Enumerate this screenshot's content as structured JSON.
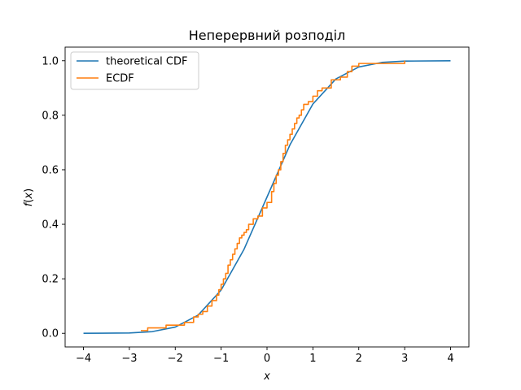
{
  "chart_data": {
    "type": "line",
    "title": "Неперервний розподіл",
    "xlabel": "x",
    "ylabel": "f(x)",
    "xlim": [
      -4.4,
      4.4
    ],
    "ylim": [
      -0.05,
      1.05
    ],
    "xticks": [
      -4,
      -3,
      -2,
      -1,
      0,
      1,
      2,
      3,
      4
    ],
    "xtick_labels": [
      "−4",
      "−3",
      "−2",
      "−1",
      "0",
      "1",
      "2",
      "3",
      "4"
    ],
    "yticks": [
      0.0,
      0.2,
      0.4,
      0.6,
      0.8,
      1.0
    ],
    "ytick_labels": [
      "0.0",
      "0.2",
      "0.4",
      "0.6",
      "0.8",
      "1.0"
    ],
    "grid": false,
    "legend_position": "top-left",
    "series": [
      {
        "name": "theoretical CDF",
        "color": "#1f77b4",
        "kind": "line",
        "x": [
          -4.0,
          -3.0,
          -2.5,
          -2.0,
          -1.5,
          -1.0,
          -0.5,
          0.0,
          0.5,
          1.0,
          1.5,
          2.0,
          2.5,
          3.0,
          4.0
        ],
        "y": [
          0.0,
          0.0013,
          0.0062,
          0.0228,
          0.0668,
          0.1587,
          0.3085,
          0.5,
          0.6915,
          0.8413,
          0.9332,
          0.9772,
          0.9938,
          0.9987,
          1.0
        ]
      },
      {
        "name": "ECDF",
        "color": "#ff7f0e",
        "kind": "step",
        "x": [
          -2.75,
          -2.6,
          -2.2,
          -1.8,
          -1.6,
          -1.5,
          -1.4,
          -1.3,
          -1.2,
          -1.1,
          -1.05,
          -1.0,
          -0.95,
          -0.9,
          -0.85,
          -0.8,
          -0.75,
          -0.7,
          -0.65,
          -0.6,
          -0.55,
          -0.5,
          -0.45,
          -0.4,
          -0.3,
          -0.2,
          -0.1,
          0.0,
          0.1,
          0.15,
          0.2,
          0.25,
          0.3,
          0.35,
          0.4,
          0.45,
          0.5,
          0.55,
          0.6,
          0.65,
          0.7,
          0.75,
          0.8,
          0.9,
          1.0,
          1.1,
          1.2,
          1.4,
          1.6,
          1.75,
          1.85,
          2.0,
          2.3,
          3.0
        ],
        "y": [
          0.01,
          0.02,
          0.03,
          0.04,
          0.06,
          0.07,
          0.08,
          0.1,
          0.12,
          0.14,
          0.16,
          0.18,
          0.2,
          0.22,
          0.25,
          0.27,
          0.29,
          0.31,
          0.33,
          0.35,
          0.36,
          0.37,
          0.38,
          0.4,
          0.42,
          0.43,
          0.46,
          0.48,
          0.52,
          0.55,
          0.58,
          0.6,
          0.63,
          0.66,
          0.69,
          0.71,
          0.73,
          0.75,
          0.77,
          0.79,
          0.8,
          0.82,
          0.84,
          0.85,
          0.87,
          0.89,
          0.9,
          0.93,
          0.94,
          0.96,
          0.98,
          0.99,
          0.99,
          1.0
        ]
      }
    ]
  }
}
